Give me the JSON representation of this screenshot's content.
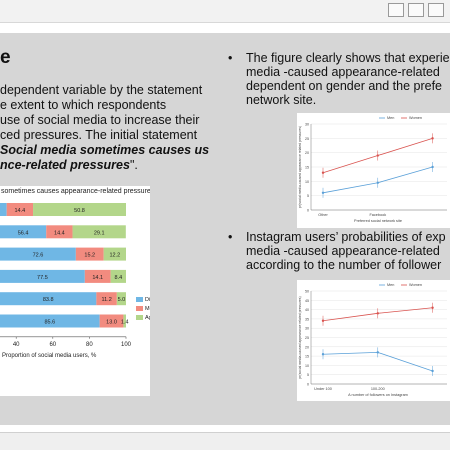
{
  "window": {
    "buttons": [
      {
        "name": "minimize-icon"
      },
      {
        "name": "maximize-icon"
      },
      {
        "name": "close-icon"
      }
    ]
  },
  "slide": {
    "title": "e",
    "left_lines": [
      "dependent variable by the statement",
      "e extent to which respondents",
      "use of social media to increase their",
      "ced pressures. The initial statement"
    ],
    "quote_line1": "Social media sometimes causes us",
    "quote_line2": "nce-related pressures",
    "quote_end": "\".",
    "bullets": [
      {
        "mark": "•",
        "lines": [
          "The figure clearly shows that experie",
          "media -caused appearance-related",
          "dependent on gender and the prefe",
          "network site."
        ]
      },
      {
        "mark": "•",
        "lines": [
          "Instagram users’ probabilities of exp",
          "media -caused appearance-related",
          "according to the number of follower"
        ]
      }
    ]
  },
  "chart_data": [
    {
      "type": "bar",
      "orientation": "horizontal-stacked",
      "title": "sometimes causes appearance-related pressures",
      "xlabel": "Proportion of social media users, %",
      "xlim": [
        0,
        100
      ],
      "xticks": [
        "40",
        "60",
        "80",
        "100"
      ],
      "legend_position": "right",
      "series": [
        {
          "name": "Disagree",
          "color": "#6fb7e5",
          "values": [
            34.8,
            56.4,
            72.6,
            77.5,
            83.8,
            85.6
          ],
          "labels": [
            "",
            "56.4",
            "72.6",
            "77.5",
            "83.8",
            "85.6"
          ]
        },
        {
          "name": "Medium",
          "color": "#f28b7f",
          "values": [
            14.4,
            14.4,
            15.2,
            14.1,
            11.2,
            13.0
          ],
          "labels": [
            "14.4",
            "14.4",
            "15.2",
            "14.1",
            "11.2",
            "13.0"
          ]
        },
        {
          "name": "Agree",
          "color": "#b3d68a",
          "values": [
            50.8,
            29.1,
            12.2,
            8.4,
            5.0,
            1.4
          ],
          "labels": [
            "50.8",
            "29.1",
            "12.2",
            "8.4",
            "5.0",
            "1.4"
          ]
        }
      ]
    },
    {
      "type": "line",
      "title": "",
      "xlabel": "Preferred social network site",
      "ylabel": "pr(social media-caused appearance related pressures)",
      "categories": [
        "Other",
        "Facebook",
        ""
      ],
      "ylim": [
        0,
        30
      ],
      "yticks": [
        "0",
        "5",
        "10",
        "15",
        "20",
        "25",
        "30"
      ],
      "legend_position": "top",
      "series": [
        {
          "name": "Men",
          "color": "#5aa0d8",
          "values": [
            6,
            9.5,
            15
          ]
        },
        {
          "name": "Women",
          "color": "#d9534f",
          "values": [
            13,
            19,
            25
          ]
        }
      ]
    },
    {
      "type": "line",
      "title": "",
      "xlabel": "A number of followers on Instagram",
      "ylabel": "pr(social media-caused appearance related pressures)",
      "categories": [
        "Under 100",
        "100-200",
        ""
      ],
      "ylim": [
        0,
        50
      ],
      "yticks": [
        "0",
        "5",
        "10",
        "15",
        "20",
        "25",
        "30",
        "35",
        "40",
        "45",
        "50"
      ],
      "legend_position": "top",
      "series": [
        {
          "name": "Men",
          "color": "#5aa0d8",
          "values": [
            16,
            17,
            7
          ]
        },
        {
          "name": "Women",
          "color": "#d9534f",
          "values": [
            34,
            38,
            41
          ]
        }
      ]
    }
  ]
}
